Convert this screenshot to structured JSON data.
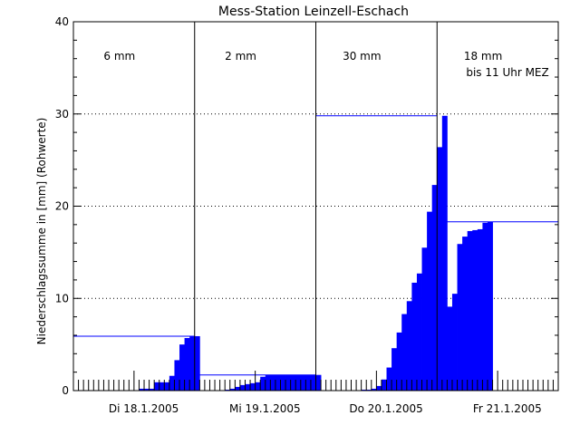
{
  "chart_data": {
    "type": "bar",
    "title": "Mess-Station Leinzell-Eschach",
    "ylabel": "Niederschlagssumme in [mm] (Rohwerte)",
    "xlabel": "",
    "ylim": [
      0,
      40
    ],
    "yticks": [
      0,
      10,
      20,
      30,
      40
    ],
    "grid": "horizontal dotted",
    "bar_color": "#0000ff",
    "days": [
      {
        "label": "Di 18.1.2005",
        "total_label": "6 mm",
        "note": "",
        "total": 5.9,
        "hourly_cumulative": [
          0,
          0,
          0,
          0,
          0,
          0,
          0,
          0,
          0,
          0,
          0,
          0,
          0,
          0.2,
          0.2,
          0.2,
          0.9,
          0.9,
          0.9,
          1.6,
          3.3,
          5.0,
          5.7,
          5.9,
          5.9
        ]
      },
      {
        "label": "Mi 19.1.2005",
        "total_label": "2 mm",
        "note": "",
        "total": 1.7,
        "hourly_cumulative": [
          0,
          0,
          0,
          0,
          0,
          0,
          0.1,
          0.2,
          0.4,
          0.6,
          0.7,
          0.8,
          0.9,
          1.5,
          1.7,
          1.7,
          1.7,
          1.7,
          1.7,
          1.7,
          1.7,
          1.7,
          1.7,
          1.7,
          1.7
        ]
      },
      {
        "label": "Do 20.1.2005",
        "total_label": "30 mm",
        "note": "",
        "total": 29.8,
        "hourly_cumulative": [
          0,
          0,
          0,
          0,
          0,
          0,
          0,
          0,
          0,
          0.1,
          0.1,
          0.2,
          0.5,
          1.2,
          2.5,
          4.6,
          6.3,
          8.3,
          9.7,
          11.7,
          12.7,
          15.5,
          19.4,
          22.3,
          26.4,
          29.8
        ]
      },
      {
        "label": "Fr 21.1.2005",
        "total_label": "18 mm",
        "note": "bis 11 Uhr MEZ",
        "total": 18.3,
        "hourly_cumulative": [
          2.6,
          6.3,
          9.1,
          10.5,
          15.9,
          16.7,
          17.3,
          17.4,
          17.5,
          18.2,
          18.3
        ]
      }
    ]
  }
}
